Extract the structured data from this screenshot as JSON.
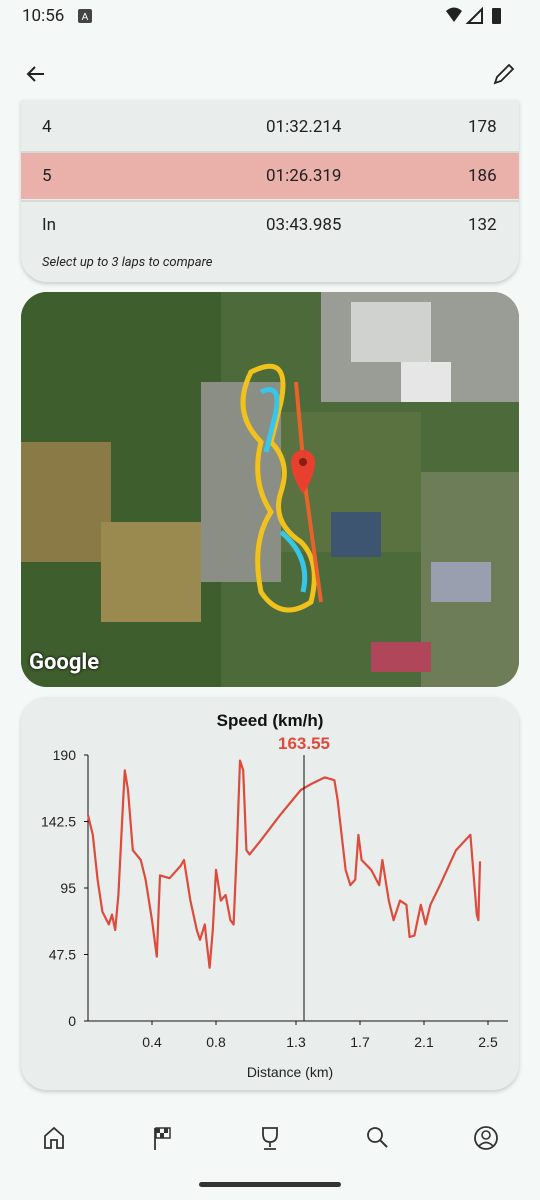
{
  "status_bar": {
    "time": "10:56"
  },
  "laps": {
    "rows": [
      [
        "4",
        "01:32.214",
        "178"
      ],
      [
        "5",
        "01:26.319",
        "186"
      ],
      [
        "In",
        "03:43.985",
        "132"
      ]
    ],
    "note": "Select up to 3 laps to compare"
  },
  "map": {
    "attribution": "Google"
  },
  "chart_data": {
    "type": "line",
    "title": "Speed (km/h)",
    "x_label": "Distance (km)",
    "x": [
      0,
      0.03,
      0.06,
      0.09,
      0.13,
      0.15,
      0.17,
      0.19,
      0.22,
      0.23,
      0.25,
      0.28,
      0.33,
      0.36,
      0.4,
      0.43,
      0.45,
      0.51,
      0.58,
      0.6,
      0.64,
      0.68,
      0.7,
      0.73,
      0.74,
      0.76,
      0.78,
      0.8,
      0.83,
      0.86,
      0.89,
      0.91,
      0.93,
      0.95,
      0.97,
      0.99,
      1.01,
      1.08,
      1.2,
      1.33,
      1.39,
      1.48,
      1.54,
      1.56,
      1.61,
      1.64,
      1.67,
      1.69,
      1.71,
      1.77,
      1.82,
      1.84,
      1.88,
      1.91,
      1.95,
      1.99,
      2.01,
      2.04,
      2.08,
      2.11,
      2.14,
      2.2,
      2.3,
      2.39,
      2.43,
      2.44,
      2.45
    ],
    "series": [
      {
        "name": "Speed",
        "color": "#e04a3a",
        "values": [
          147,
          133,
          101,
          78,
          69,
          76,
          65,
          90,
          158,
          179,
          165,
          122,
          115,
          101,
          72,
          46,
          104,
          102,
          111,
          115,
          86,
          65,
          58,
          69,
          58,
          38,
          65,
          108,
          86,
          90,
          72,
          69,
          122,
          186,
          179,
          122,
          119,
          129,
          147,
          165,
          169,
          174,
          172,
          158,
          108,
          97,
          101,
          133,
          115,
          108,
          97,
          115,
          86,
          72,
          86,
          83,
          60,
          61,
          83,
          69,
          83,
          97,
          122,
          133,
          76,
          72,
          114
        ]
      }
    ],
    "xlim": [
      0,
      2.625
    ],
    "xticks": [
      0.4,
      0.8,
      1.3,
      1.7,
      2.1,
      2.5
    ],
    "ylim": [
      0,
      190
    ],
    "yticks": [
      0,
      47.5,
      95,
      142.5,
      190
    ],
    "cursor": {
      "x": 1.35,
      "label": "163.55"
    }
  }
}
